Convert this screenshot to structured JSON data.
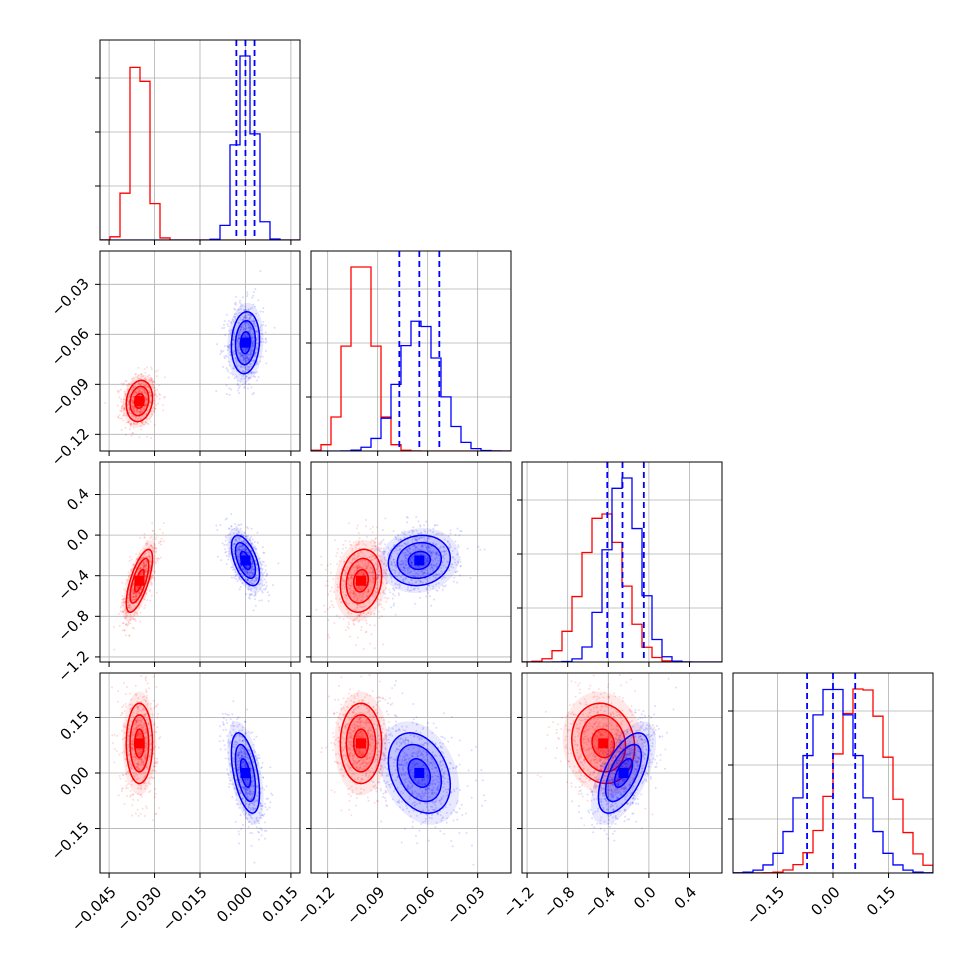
{
  "chart_data": {
    "type": "corner",
    "parameters": 4,
    "grid": true,
    "series": [
      {
        "color": "#ff0000",
        "mean": [
          -0.035,
          -0.1,
          -0.45,
          0.08
        ],
        "std": [
          0.0028,
          0.008,
          0.2,
          0.07
        ],
        "corr": {
          "1_0": 0.15,
          "2_0": 0.7,
          "2_1": 0.15,
          "3_0": 0.0,
          "3_1": 0.0,
          "3_2": -0.1
        },
        "quantiles_shown": false
      },
      {
        "color": "#0000ff",
        "mean": [
          0.0,
          -0.065,
          -0.25,
          0.0
        ],
        "std": [
          0.003,
          0.012,
          0.16,
          0.07
        ],
        "corr": {
          "1_0": 0.1,
          "2_0": -0.55,
          "2_1": 0.1,
          "3_0": -0.5,
          "3_1": -0.3,
          "3_2": 0.6
        },
        "quantiles_shown": true,
        "quantiles": [
          [
            -0.003,
            0.0,
            0.003
          ],
          [
            -0.077,
            -0.065,
            -0.053
          ],
          [
            -0.41,
            -0.26,
            -0.05
          ],
          [
            -0.07,
            0.0,
            0.06
          ]
        ]
      }
    ],
    "axes": [
      {
        "lim": [
          -0.048,
          0.018
        ],
        "ticks": [
          -0.045,
          -0.03,
          -0.015,
          0.0,
          0.015
        ],
        "tick_labels": [
          "−0.045",
          "−0.030",
          "−0.015",
          "0.000",
          "0.015"
        ]
      },
      {
        "lim": [
          -0.13,
          -0.01
        ],
        "ticks": [
          -0.12,
          -0.09,
          -0.06,
          -0.03
        ],
        "tick_labels": [
          "−0.12",
          "−0.09",
          "−0.06",
          "−0.03"
        ]
      },
      {
        "lim": [
          -1.25,
          0.72
        ],
        "ticks": [
          -1.2,
          -0.8,
          -0.4,
          0.0,
          0.4
        ],
        "tick_labels": [
          "−1.2",
          "−0.8",
          "−0.4",
          "0.0",
          "0.4"
        ]
      },
      {
        "lim": [
          -0.27,
          0.27
        ],
        "ticks": [
          -0.15,
          0.0,
          0.15
        ],
        "tick_labels": [
          "−0.15",
          "0.00",
          "0.15"
        ]
      }
    ]
  }
}
